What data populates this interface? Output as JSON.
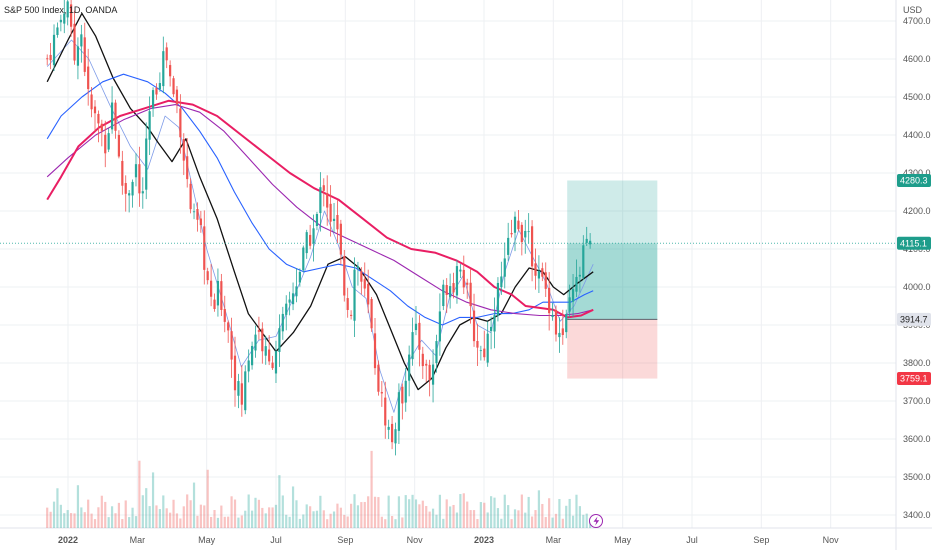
{
  "header": {
    "symbol_line": "S&P 500 Index, 1D, OANDA"
  },
  "axis": {
    "currency": "USD"
  },
  "colors": {
    "up": "#26a69a",
    "down": "#ef5350",
    "ma_black": "#111111",
    "ma_blue": "#2962ff",
    "ma_purple": "#9c27b0",
    "ma_red": "#e91e63",
    "ma_thin": "#7e9be8",
    "target_zone": "#26a69a",
    "stop_zone": "#ef5350",
    "target_label": "#1e9d8b",
    "stop_label": "#f23645",
    "entry_label": "#e0e3eb"
  },
  "chart_data": {
    "type": "candlestick",
    "title": "S&P 500 Index, 1D, OANDA",
    "ylabel": "USD",
    "ylim": [
      3350,
      4760
    ],
    "y_ticks": [
      4700,
      4600,
      4500,
      4400,
      4300,
      4200,
      4100,
      4000,
      3900,
      3800,
      3700,
      3600,
      3500,
      3400
    ],
    "y_tick_labels": [
      "4700.0",
      "4600.0",
      "4500.0",
      "4400.0",
      "4300.0",
      "4200.0",
      "4100.0",
      "4000.0",
      "3900.0",
      "3800.0",
      "3700.0",
      "3600.0",
      "3500.0",
      "3400.0"
    ],
    "x_tick_labels": [
      "2022",
      "Mar",
      "May",
      "Jul",
      "Sep",
      "Nov",
      "2023",
      "Mar",
      "May",
      "Jul",
      "Sep",
      "Nov"
    ],
    "x_tick_months": [
      0,
      2,
      4,
      6,
      8,
      10,
      12,
      14,
      16,
      18,
      20,
      22
    ],
    "grid": true,
    "close_path": [
      [
        -0.6,
        4600
      ],
      [
        -0.3,
        4680
      ],
      [
        0.0,
        4766
      ],
      [
        0.15,
        4580
      ],
      [
        0.35,
        4700
      ],
      [
        0.6,
        4480
      ],
      [
        0.9,
        4420
      ],
      [
        1.1,
        4380
      ],
      [
        1.3,
        4500
      ],
      [
        1.5,
        4290
      ],
      [
        1.7,
        4240
      ],
      [
        1.95,
        4330
      ],
      [
        2.1,
        4200
      ],
      [
        2.35,
        4450
      ],
      [
        2.6,
        4550
      ],
      [
        2.8,
        4630
      ],
      [
        3.0,
        4520
      ],
      [
        3.2,
        4460
      ],
      [
        3.4,
        4300
      ],
      [
        3.6,
        4170
      ],
      [
        3.8,
        4150
      ],
      [
        4.0,
        4030
      ],
      [
        4.15,
        3930
      ],
      [
        4.35,
        3990
      ],
      [
        4.6,
        3900
      ],
      [
        4.8,
        3770
      ],
      [
        5.0,
        3690
      ],
      [
        5.2,
        3820
      ],
      [
        5.45,
        3900
      ],
      [
        5.6,
        3850
      ],
      [
        5.8,
        3790
      ],
      [
        5.95,
        3830
      ],
      [
        6.2,
        3900
      ],
      [
        6.45,
        3980
      ],
      [
        6.7,
        4050
      ],
      [
        6.95,
        4130
      ],
      [
        7.15,
        4160
      ],
      [
        7.35,
        4290
      ],
      [
        7.55,
        4190
      ],
      [
        7.75,
        4150
      ],
      [
        7.95,
        4010
      ],
      [
        8.15,
        3930
      ],
      [
        8.3,
        4080
      ],
      [
        8.5,
        4000
      ],
      [
        8.7,
        3920
      ],
      [
        8.9,
        3770
      ],
      [
        9.05,
        3700
      ],
      [
        9.2,
        3640
      ],
      [
        9.35,
        3590
      ],
      [
        9.5,
        3680
      ],
      [
        9.65,
        3720
      ],
      [
        9.85,
        3850
      ],
      [
        10.0,
        3880
      ],
      [
        10.2,
        3830
      ],
      [
        10.4,
        3750
      ],
      [
        10.55,
        3800
      ],
      [
        10.75,
        3960
      ],
      [
        10.95,
        4020
      ],
      [
        11.1,
        4010
      ],
      [
        11.3,
        4080
      ],
      [
        11.5,
        3980
      ],
      [
        11.7,
        3880
      ],
      [
        11.9,
        3830
      ],
      [
        12.05,
        3840
      ],
      [
        12.2,
        3920
      ],
      [
        12.4,
        3990
      ],
      [
        12.6,
        4050
      ],
      [
        12.75,
        4130
      ],
      [
        12.95,
        4180
      ],
      [
        13.15,
        4140
      ],
      [
        13.35,
        4100
      ],
      [
        13.55,
        4030
      ],
      [
        13.75,
        4000
      ],
      [
        13.9,
        3960
      ],
      [
        14.05,
        3900
      ],
      [
        14.2,
        3860
      ],
      [
        14.35,
        3890
      ],
      [
        14.5,
        3960
      ],
      [
        14.65,
        4000
      ],
      [
        14.8,
        4050
      ],
      [
        14.92,
        4110
      ],
      [
        15.05,
        4140
      ],
      [
        15.15,
        4115
      ]
    ],
    "volume_range": [
      0,
      120
    ],
    "moving_averages": [
      {
        "color": "#7e9be8",
        "width": 0.8,
        "points": [
          [
            -0.6,
            4580
          ],
          [
            0.1,
            4650
          ],
          [
            0.6,
            4600
          ],
          [
            1.2,
            4480
          ],
          [
            1.8,
            4370
          ],
          [
            2.3,
            4310
          ],
          [
            2.8,
            4450
          ],
          [
            3.2,
            4420
          ],
          [
            3.6,
            4260
          ],
          [
            4.0,
            4100
          ],
          [
            4.5,
            3950
          ],
          [
            5.0,
            3790
          ],
          [
            5.5,
            3860
          ],
          [
            6.0,
            3870
          ],
          [
            6.5,
            3970
          ],
          [
            7.0,
            4080
          ],
          [
            7.4,
            4200
          ],
          [
            7.8,
            4110
          ],
          [
            8.2,
            4000
          ],
          [
            8.6,
            3970
          ],
          [
            9.0,
            3780
          ],
          [
            9.4,
            3670
          ],
          [
            9.8,
            3800
          ],
          [
            10.2,
            3860
          ],
          [
            10.6,
            3820
          ],
          [
            11.0,
            3970
          ],
          [
            11.4,
            4030
          ],
          [
            11.8,
            3900
          ],
          [
            12.2,
            3880
          ],
          [
            12.6,
            4040
          ],
          [
            13.0,
            4150
          ],
          [
            13.4,
            4080
          ],
          [
            13.8,
            4010
          ],
          [
            14.2,
            3910
          ],
          [
            14.6,
            3950
          ],
          [
            15.15,
            4060
          ]
        ]
      },
      {
        "color": "#111111",
        "width": 1.3,
        "points": [
          [
            -0.6,
            4540
          ],
          [
            0.0,
            4650
          ],
          [
            0.4,
            4720
          ],
          [
            0.8,
            4660
          ],
          [
            1.3,
            4550
          ],
          [
            1.8,
            4470
          ],
          [
            2.3,
            4420
          ],
          [
            2.6,
            4380
          ],
          [
            3.0,
            4330
          ],
          [
            3.4,
            4390
          ],
          [
            3.8,
            4290
          ],
          [
            4.3,
            4180
          ],
          [
            4.8,
            4040
          ],
          [
            5.2,
            3930
          ],
          [
            5.6,
            3880
          ],
          [
            6.0,
            3830
          ],
          [
            6.5,
            3880
          ],
          [
            7.0,
            3950
          ],
          [
            7.5,
            4060
          ],
          [
            8.0,
            4080
          ],
          [
            8.4,
            4050
          ],
          [
            8.9,
            3980
          ],
          [
            9.3,
            3890
          ],
          [
            9.7,
            3800
          ],
          [
            10.1,
            3730
          ],
          [
            10.5,
            3760
          ],
          [
            10.9,
            3840
          ],
          [
            11.3,
            3900
          ],
          [
            11.7,
            3920
          ],
          [
            12.1,
            3910
          ],
          [
            12.5,
            3930
          ],
          [
            12.9,
            4000
          ],
          [
            13.3,
            4050
          ],
          [
            13.7,
            4040
          ],
          [
            14.0,
            4000
          ],
          [
            14.3,
            3980
          ],
          [
            14.7,
            4010
          ],
          [
            15.15,
            4040
          ]
        ]
      },
      {
        "color": "#2962ff",
        "width": 1.1,
        "points": [
          [
            -0.6,
            4390
          ],
          [
            -0.2,
            4450
          ],
          [
            0.4,
            4500
          ],
          [
            1.0,
            4540
          ],
          [
            1.6,
            4560
          ],
          [
            2.3,
            4540
          ],
          [
            2.8,
            4510
          ],
          [
            3.3,
            4470
          ],
          [
            3.8,
            4410
          ],
          [
            4.3,
            4340
          ],
          [
            4.8,
            4250
          ],
          [
            5.3,
            4170
          ],
          [
            5.8,
            4100
          ],
          [
            6.3,
            4060
          ],
          [
            6.8,
            4040
          ],
          [
            7.3,
            4050
          ],
          [
            7.8,
            4060
          ],
          [
            8.3,
            4050
          ],
          [
            8.8,
            4020
          ],
          [
            9.3,
            3990
          ],
          [
            9.8,
            3950
          ],
          [
            10.3,
            3920
          ],
          [
            10.8,
            3900
          ],
          [
            11.3,
            3920
          ],
          [
            11.8,
            3920
          ],
          [
            12.3,
            3930
          ],
          [
            12.8,
            3930
          ],
          [
            13.3,
            3940
          ],
          [
            13.7,
            3960
          ],
          [
            14.1,
            3960
          ],
          [
            14.5,
            3960
          ],
          [
            14.9,
            3980
          ],
          [
            15.15,
            3990
          ]
        ]
      },
      {
        "color": "#9c27b0",
        "width": 1.1,
        "points": [
          [
            -0.6,
            4290
          ],
          [
            0.0,
            4340
          ],
          [
            0.8,
            4400
          ],
          [
            1.6,
            4440
          ],
          [
            2.4,
            4470
          ],
          [
            3.1,
            4480
          ],
          [
            3.8,
            4460
          ],
          [
            4.5,
            4410
          ],
          [
            5.2,
            4340
          ],
          [
            5.9,
            4270
          ],
          [
            6.6,
            4210
          ],
          [
            7.3,
            4160
          ],
          [
            8.0,
            4130
          ],
          [
            8.7,
            4100
          ],
          [
            9.4,
            4070
          ],
          [
            10.1,
            4030
          ],
          [
            10.8,
            3990
          ],
          [
            11.5,
            3960
          ],
          [
            12.2,
            3940
          ],
          [
            12.9,
            3930
          ],
          [
            13.6,
            3925
          ],
          [
            14.2,
            3925
          ],
          [
            14.7,
            3930
          ],
          [
            15.15,
            3940
          ]
        ]
      },
      {
        "color": "#e91e63",
        "width": 2.0,
        "points": [
          [
            -0.6,
            4230
          ],
          [
            -0.2,
            4290
          ],
          [
            0.3,
            4370
          ],
          [
            0.9,
            4420
          ],
          [
            1.5,
            4450
          ],
          [
            2.2,
            4470
          ],
          [
            2.9,
            4490
          ],
          [
            3.6,
            4480
          ],
          [
            4.3,
            4450
          ],
          [
            5.0,
            4400
          ],
          [
            5.7,
            4350
          ],
          [
            6.4,
            4300
          ],
          [
            7.1,
            4260
          ],
          [
            7.8,
            4230
          ],
          [
            8.5,
            4180
          ],
          [
            9.2,
            4130
          ],
          [
            9.9,
            4100
          ],
          [
            10.6,
            4090
          ],
          [
            11.2,
            4070
          ],
          [
            11.8,
            4040
          ],
          [
            12.3,
            4000
          ],
          [
            12.8,
            3980
          ],
          [
            13.2,
            3950
          ],
          [
            13.6,
            3945
          ],
          [
            14.0,
            3940
          ],
          [
            14.4,
            3920
          ],
          [
            14.8,
            3925
          ],
          [
            15.15,
            3940
          ]
        ]
      }
    ],
    "position_tool": {
      "target": 4280.3,
      "entry": 3914.7,
      "stop": 3759.1,
      "current": 4115.1,
      "target_label": "4280.3",
      "entry_label": "3914.7",
      "stop_label": "3759.1",
      "current_label": "4115.1",
      "start_month": 14.4,
      "end_month": 17.0
    }
  }
}
